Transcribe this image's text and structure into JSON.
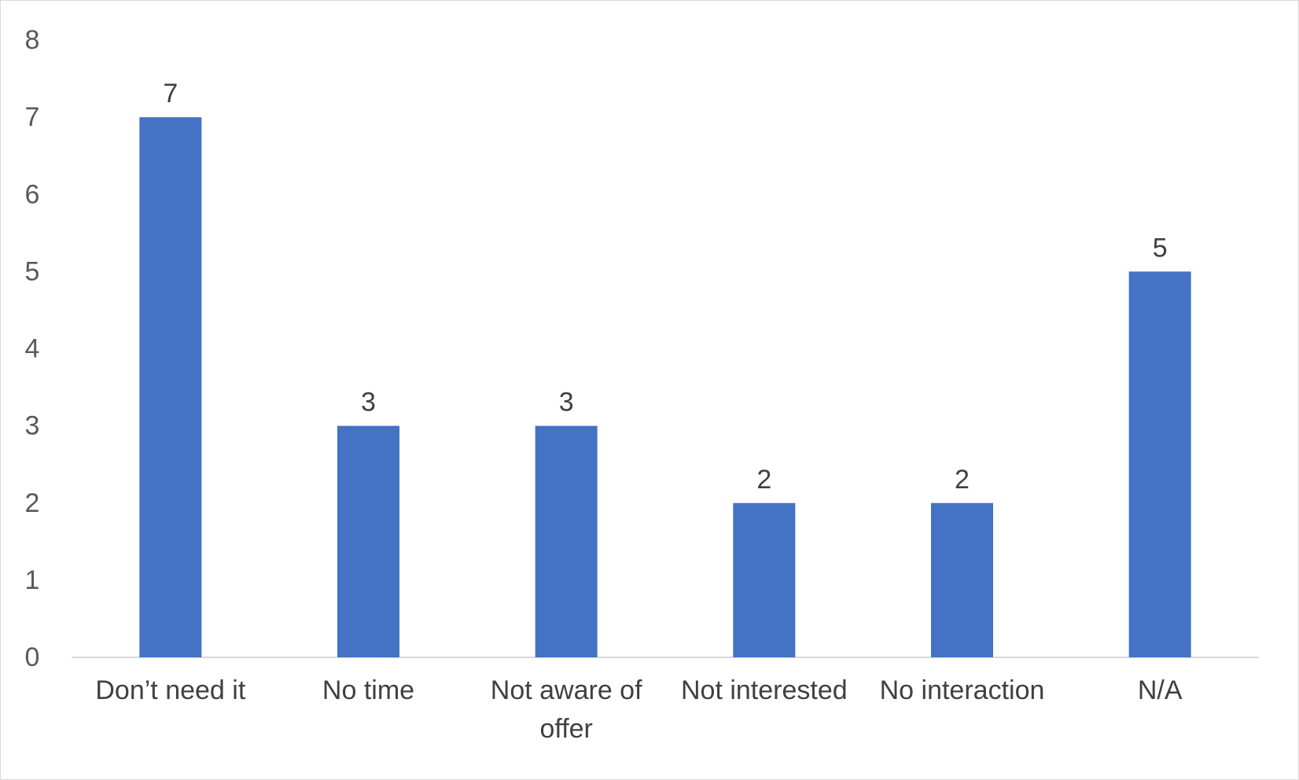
{
  "chart_data": {
    "type": "bar",
    "categories": [
      "Don’t need it",
      "No time",
      "Not aware of offer",
      "Not interested",
      "No interaction",
      "N/A"
    ],
    "category_lines": [
      [
        "Don’t need it"
      ],
      [
        "No time"
      ],
      [
        "Not aware of",
        "offer"
      ],
      [
        "Not interested"
      ],
      [
        "No interaction"
      ],
      [
        "N/A"
      ]
    ],
    "values": [
      7,
      3,
      3,
      2,
      2,
      5
    ],
    "title": "",
    "xlabel": "",
    "ylabel": "",
    "ylim": [
      0,
      8
    ],
    "yticks": [
      0,
      1,
      2,
      3,
      4,
      5,
      6,
      7,
      8
    ],
    "grid": false,
    "legend": "none",
    "data_labels": true,
    "bar_color": "#4472c4",
    "axis_line_color": "#d9d9d9",
    "tick_label_color": "#595959",
    "label_color": "#404040"
  }
}
